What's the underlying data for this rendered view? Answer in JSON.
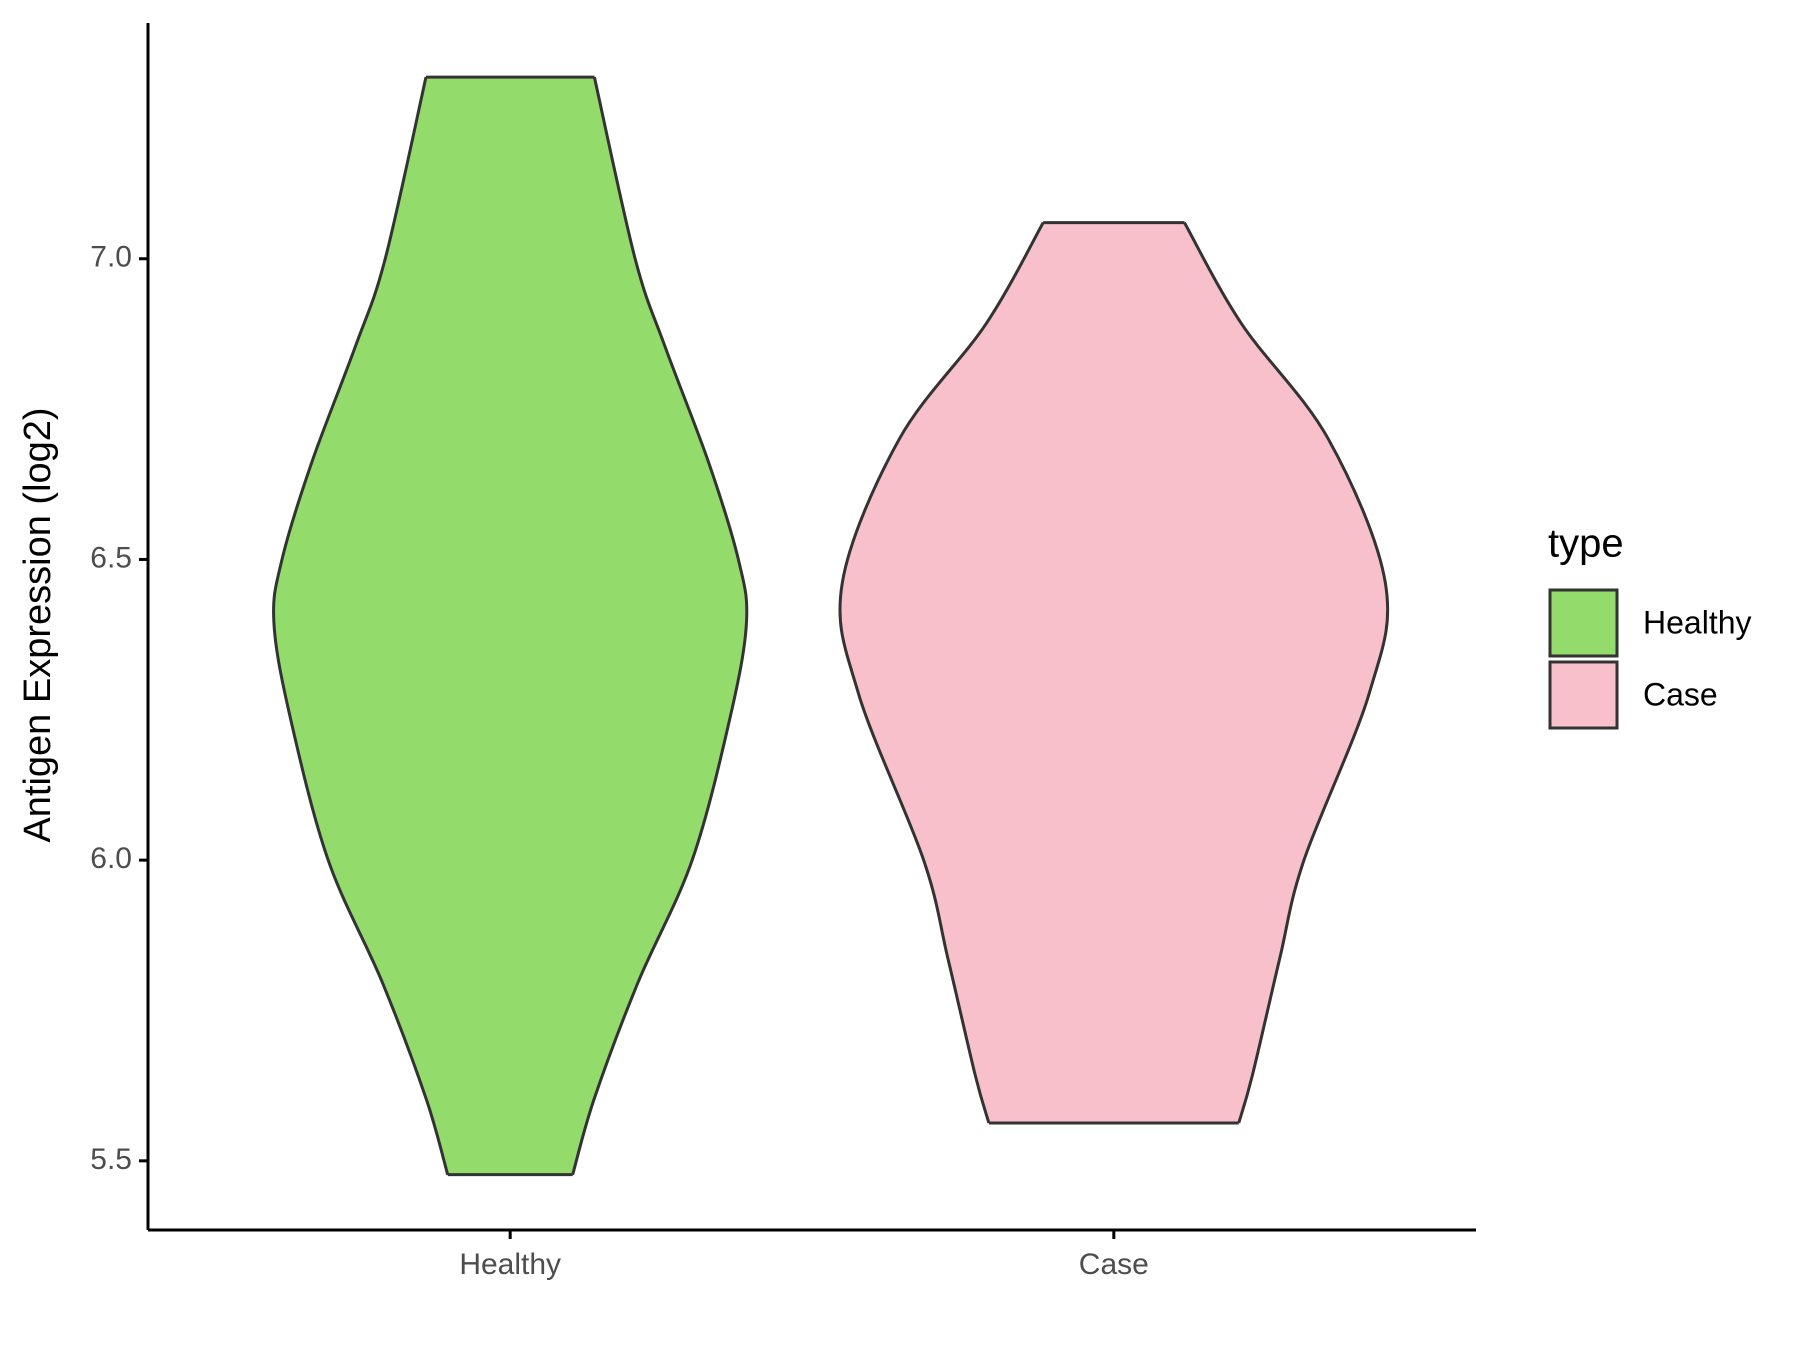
{
  "chart_data": {
    "type": "violin",
    "y_label": "Antigen Expression (log2)",
    "categories": [
      "Healthy",
      "Case"
    ],
    "ylim": [
      5.385,
      7.392
    ],
    "yticks": [
      {
        "value": 5.5,
        "label": "5.5"
      },
      {
        "value": 6,
        "label": "6.0"
      },
      {
        "value": 6.5,
        "label": "6.5"
      },
      {
        "value": 7,
        "label": "7.0"
      }
    ],
    "legend_title": "type",
    "legend_position": "right",
    "series": [
      {
        "name": "Healthy",
        "color": "#93dc6b",
        "y": [
          7.302,
          7.0,
          6.854,
          6.662,
          6.5,
          6.396,
          6.238,
          6.0,
          5.796,
          5.604,
          5.477
        ],
        "density": [
          0.31,
          0.46,
          0.57,
          0.73,
          0.84,
          0.87,
          0.81,
          0.67,
          0.47,
          0.31,
          0.23
        ]
      },
      {
        "name": "Case",
        "color": "#f7c0cb",
        "y": [
          7.06,
          6.892,
          6.7,
          6.46,
          6.277,
          6.0,
          5.835,
          5.642,
          5.563
        ],
        "density": [
          0.26,
          0.47,
          0.79,
          1.0,
          0.94,
          0.7,
          0.61,
          0.51,
          0.46
        ]
      }
    ]
  }
}
